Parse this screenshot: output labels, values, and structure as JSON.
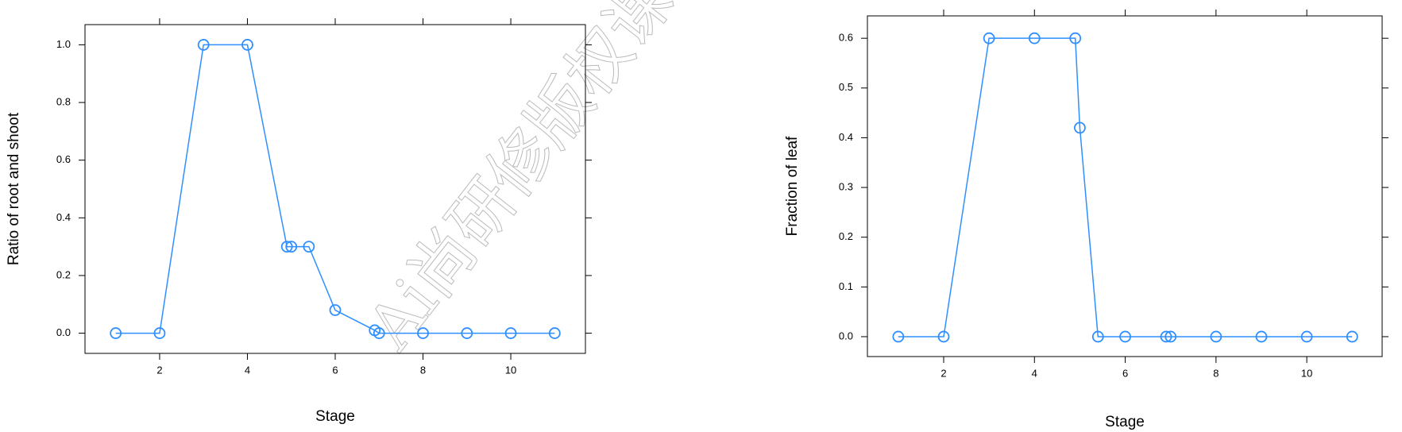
{
  "chart_data": [
    {
      "type": "line",
      "x_label": "Stage",
      "y_label": "Ratio of root and shoot",
      "x": [
        1,
        2,
        3,
        4,
        4.9,
        5,
        5.4,
        6,
        6.9,
        7,
        8,
        9,
        10,
        11
      ],
      "series": [
        {
          "color": "#2f8fff",
          "values": [
            0,
            0,
            1,
            1,
            0.3,
            0.3,
            0.3,
            0.08,
            0.01,
            0,
            0,
            0,
            0,
            0
          ]
        }
      ],
      "xlim": [
        0.3,
        11.7
      ],
      "xticks": [
        2,
        4,
        6,
        8,
        10
      ],
      "ylim": [
        -0.07,
        1.07
      ],
      "yticks": [
        {
          "value": 0,
          "label": "0.0"
        },
        0.2,
        0.4,
        0.6,
        0.8,
        {
          "value": 1,
          "label": "1.0"
        }
      ]
    },
    {
      "type": "line",
      "x_label": "Stage",
      "y_label": "Fraction of leaf",
      "x": [
        1,
        2,
        3,
        4,
        4.9,
        5,
        5.4,
        6,
        6.9,
        7,
        8,
        9,
        10,
        11
      ],
      "series": [
        {
          "color": "#2f8fff",
          "values": [
            0,
            0,
            0.6,
            0.6,
            0.6,
            0.42,
            0,
            0,
            0,
            0,
            0,
            0,
            0,
            0
          ]
        }
      ],
      "xlim": [
        0.32,
        11.66
      ],
      "xticks": [
        2,
        4,
        6,
        8,
        10
      ],
      "ylim": [
        -0.04,
        0.645
      ],
      "yticks": [
        {
          "value": 0,
          "label": "0.0"
        },
        0.1,
        0.2,
        0.3,
        0.4,
        0.5,
        0.6
      ]
    }
  ],
  "watermark": "Ai尚研修版权课"
}
